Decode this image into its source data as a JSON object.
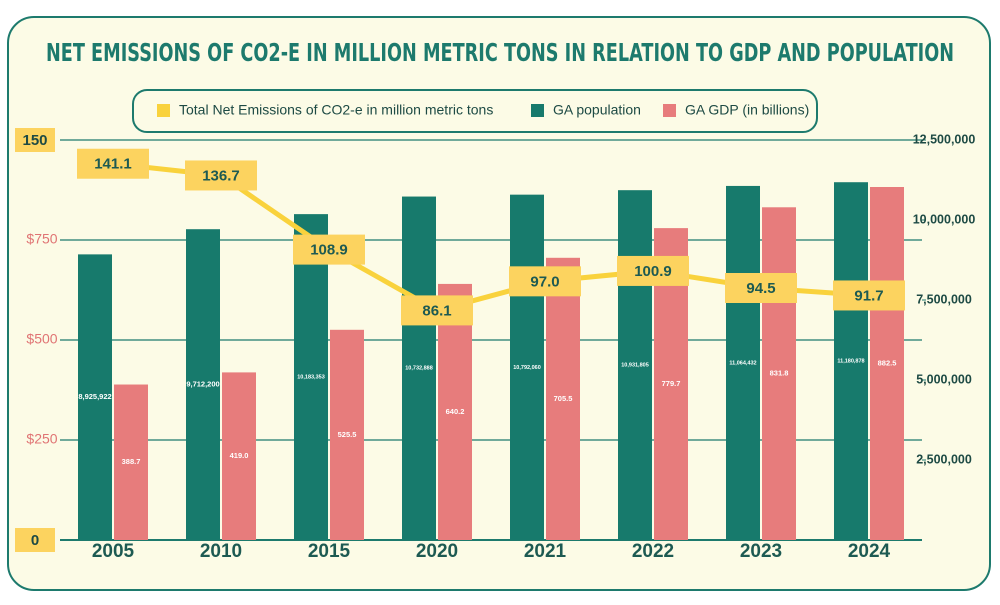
{
  "chart_data": {
    "type": "bar-line",
    "title": "NET EMISSIONS OF CO2-E IN MILLION METRIC TONS IN RELATION TO GDP AND POPULATION",
    "categories": [
      "2005",
      "2010",
      "2015",
      "2020",
      "2021",
      "2022",
      "2023",
      "2024"
    ],
    "series": [
      {
        "name": "Total Net Emissions of CO2-e in million metric tons",
        "color": "#f9d23c",
        "type": "line",
        "axis": "y",
        "values": [
          141.1,
          136.7,
          108.9,
          86.1,
          97.0,
          100.9,
          94.5,
          91.7
        ],
        "value_labels": [
          "141.1",
          "136.7",
          "108.9",
          "86.1",
          "97.0",
          "100.9",
          "94.5",
          "91.7"
        ]
      },
      {
        "name": "GA population",
        "color": "#177a6c",
        "type": "bar",
        "axis": "y2",
        "values": [
          8925922,
          9712200,
          10183353,
          10732888,
          10792060,
          10931805,
          11064432,
          11180878
        ],
        "value_labels": [
          "8,925,922",
          "9,712,200",
          "10,183,353",
          "10,732,888",
          "10,792,060",
          "10,931,805",
          "11,064,432",
          "11,180,878"
        ]
      },
      {
        "name": "GA GDP (in billions)",
        "color": "#e77c7c",
        "type": "bar",
        "axis": "y3",
        "values": [
          388.7,
          419.0,
          525.5,
          640.2,
          705.5,
          779.7,
          831.8,
          882.5
        ],
        "value_labels": [
          "388.7",
          "419.0",
          "525.5",
          "640.2",
          "705.5",
          "779.7",
          "831.8",
          "882.5"
        ]
      }
    ],
    "ylim": [
      0,
      150
    ],
    "yticks": [
      0,
      150
    ],
    "y3lim": [
      0,
      1000
    ],
    "y3ticks": [
      {
        "value": 250,
        "label": "$250"
      },
      {
        "value": 500,
        "label": "$500"
      },
      {
        "value": 750,
        "label": "$750"
      }
    ],
    "y2lim": [
      0,
      12500000
    ],
    "y2ticks": [
      {
        "value": 2500000,
        "label": "2,500,000"
      },
      {
        "value": 5000000,
        "label": "5,000,000"
      },
      {
        "value": 7500000,
        "label": "7,500,000"
      },
      {
        "value": 10000000,
        "label": "10,000,000"
      },
      {
        "value": 12500000,
        "label": "12,500,000"
      }
    ],
    "grid": true
  }
}
